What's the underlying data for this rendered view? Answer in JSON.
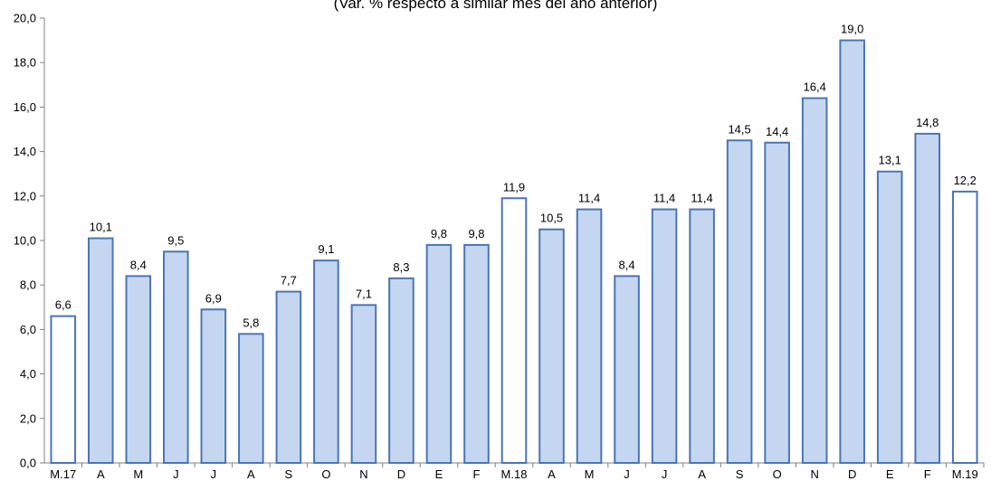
{
  "chart_data": {
    "type": "bar",
    "subtitle": "(Var. % respecto a similar mes del año anterior)",
    "categories": [
      "M.17",
      "A",
      "M",
      "J",
      "J",
      "A",
      "S",
      "O",
      "N",
      "D",
      "E",
      "F",
      "M.18",
      "A",
      "M",
      "J",
      "J",
      "A",
      "S",
      "O",
      "N",
      "D",
      "E",
      "F",
      "M.19"
    ],
    "values": [
      6.6,
      10.1,
      8.4,
      9.5,
      6.9,
      5.8,
      7.7,
      9.1,
      7.1,
      8.3,
      9.8,
      9.8,
      11.9,
      10.5,
      11.4,
      8.4,
      11.4,
      11.4,
      14.5,
      14.4,
      16.4,
      19.0,
      13.1,
      14.8,
      12.2
    ],
    "data_labels": [
      "6,6",
      "10,1",
      "8,4",
      "9,5",
      "6,9",
      "5,8",
      "7,7",
      "9,1",
      "7,1",
      "8,3",
      "9,8",
      "9,8",
      "11,9",
      "10,5",
      "11,4",
      "8,4",
      "11,4",
      "11,4",
      "14,5",
      "14,4",
      "16,4",
      "19,0",
      "13,1",
      "14,8",
      "12,2"
    ],
    "ylim": [
      0,
      20
    ],
    "yticks": [
      0,
      2,
      4,
      6,
      8,
      10,
      12,
      14,
      16,
      18,
      20
    ],
    "ytick_labels": [
      "0,0",
      "2,0",
      "4,0",
      "6,0",
      "8,0",
      "10,0",
      "12,0",
      "14,0",
      "16,0",
      "18,0",
      "20,0"
    ],
    "highlighted_categories": [
      "M.17",
      "M.18",
      "M.19"
    ],
    "colors": {
      "bar_fill": "#c5d7f0",
      "bar_stroke": "#4a75b5",
      "highlight_fill": "#ffffff",
      "axis": "#808080"
    },
    "grid": false
  }
}
